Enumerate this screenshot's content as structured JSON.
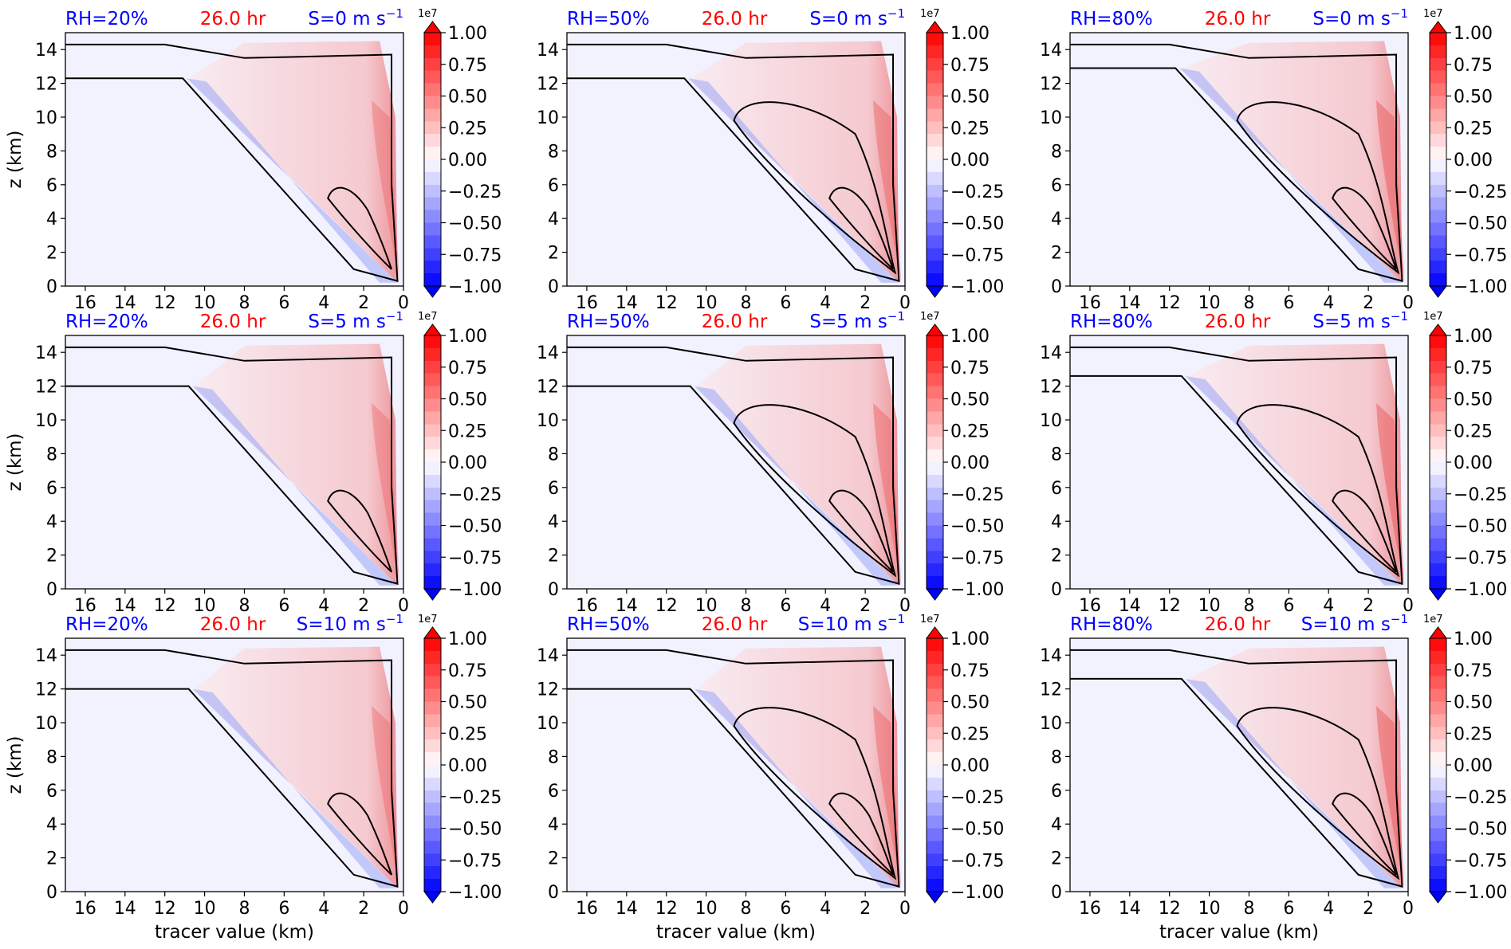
{
  "figure": {
    "xlabel": "tracer value (km)",
    "ylabel": "z (km)",
    "time_label": "26.0 hr",
    "rh_color": "#0000ff",
    "time_color": "#ff0000",
    "shear_color": "#0000ff",
    "rows": [
      {
        "shear_label": "S=0 m s",
        "shear_value": 0
      },
      {
        "shear_label": "S=5 m s",
        "shear_value": 5
      },
      {
        "shear_label": "S=10 m s",
        "shear_value": 10
      }
    ],
    "cols": [
      {
        "rh_label": "RH=20%",
        "rh_value": 20
      },
      {
        "rh_label": "RH=50%",
        "rh_value": 50
      },
      {
        "rh_label": "RH=80%",
        "rh_value": 80
      }
    ],
    "unit_exponent": "−1"
  },
  "chart_data": {
    "type": "heatmap",
    "panels": 9,
    "x_range": [
      17,
      0
    ],
    "x_ticks": [
      16,
      14,
      12,
      10,
      8,
      6,
      4,
      2,
      0
    ],
    "y_range": [
      0,
      15
    ],
    "y_ticks": [
      0,
      2,
      4,
      6,
      8,
      10,
      12,
      14
    ],
    "colorbar": {
      "range": [
        -1.0,
        1.0
      ],
      "scale_label": "1e7",
      "ticks": [
        "1.00",
        "0.75",
        "0.50",
        "0.25",
        "0.00",
        "−0.25",
        "−0.50",
        "−0.75",
        "−1.00"
      ],
      "colormap": "bwr",
      "extend": "both",
      "low_color": "#0000ff",
      "mid_color": "#ffffff",
      "high_color": "#ff0000"
    },
    "background_color": "#f2f2ff",
    "contour_color": "#000000"
  }
}
